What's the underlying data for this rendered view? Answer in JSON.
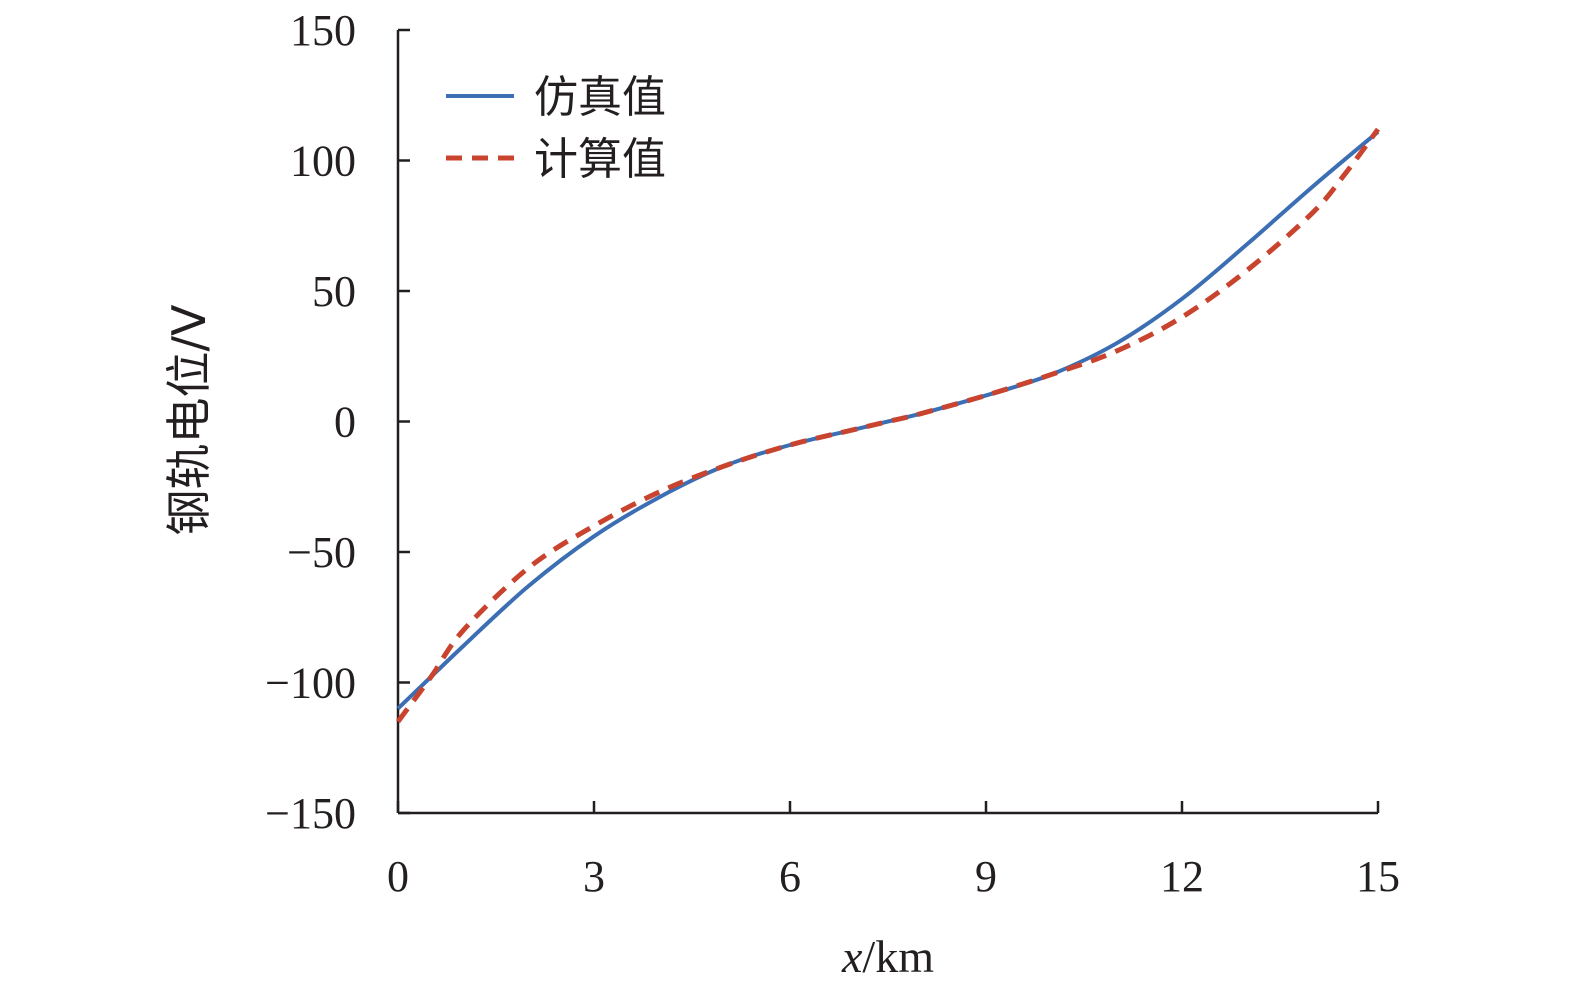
{
  "chart_data": {
    "type": "line",
    "xlabel_italic": "x",
    "xlabel_rest": "/km",
    "ylabel": "钢轨电位/V",
    "xlim": [
      0,
      15
    ],
    "ylim": [
      -150,
      150
    ],
    "xticks": [
      0,
      3,
      6,
      9,
      12,
      15
    ],
    "yticks": [
      150,
      100,
      50,
      0,
      -50,
      -100,
      -150
    ],
    "ytick_labels": [
      "150",
      "100",
      "50",
      "0",
      "−50",
      "−100",
      "−150"
    ],
    "grid": false,
    "legend_position": "top-left",
    "series": [
      {
        "name": "仿真值",
        "color": "#3c6eb4",
        "style": "solid",
        "x": [
          0,
          1,
          2,
          3,
          4,
          5,
          6,
          7,
          7.5,
          8,
          9,
          10,
          11,
          12,
          13,
          14,
          15
        ],
        "y": [
          -110,
          -86,
          -63,
          -44,
          -29,
          -17,
          -9,
          -3,
          0,
          3,
          10,
          18,
          30,
          47,
          68,
          90,
          111
        ]
      },
      {
        "name": "计算值",
        "color": "#c8442e",
        "style": "dashed",
        "x": [
          0,
          0.5,
          1,
          2,
          3,
          4,
          5,
          6,
          7,
          7.5,
          8,
          9,
          10,
          11,
          12,
          13,
          14,
          14.5,
          15
        ],
        "y": [
          -115,
          -98,
          -80,
          -56,
          -40,
          -27,
          -17,
          -9,
          -3,
          0,
          3,
          10,
          18,
          27,
          40,
          58,
          80,
          95,
          112
        ]
      }
    ]
  }
}
